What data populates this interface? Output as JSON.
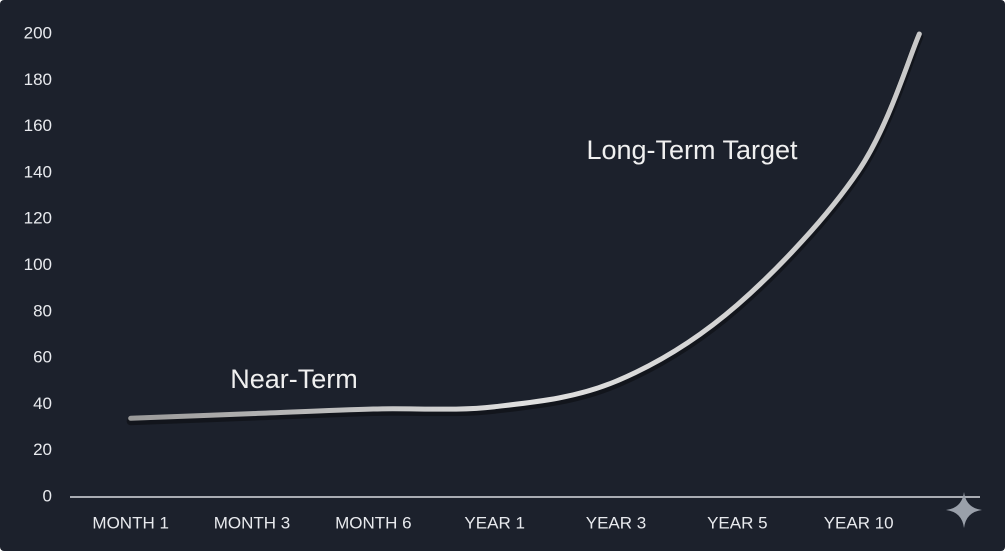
{
  "chart_data": {
    "type": "line",
    "annotations": [
      "Near-Term",
      "Long-Term Target"
    ],
    "x": [
      0,
      1,
      2,
      3,
      4,
      5,
      6,
      6.5
    ],
    "values": [
      34,
      36,
      38,
      39,
      50,
      83,
      141,
      200
    ],
    "color": "#d8d8d8",
    "xlim": [
      -0.5,
      7
    ],
    "xticks": [
      {
        "value": 0,
        "label": "MONTH 1"
      },
      {
        "value": 1,
        "label": "MONTH 3"
      },
      {
        "value": 2,
        "label": "MONTH 6"
      },
      {
        "value": 3,
        "label": "YEAR 1"
      },
      {
        "value": 4,
        "label": "YEAR 3"
      },
      {
        "value": 5,
        "label": "YEAR 5"
      },
      {
        "value": 6,
        "label": "YEAR 10"
      }
    ],
    "ylim": [
      0,
      200
    ],
    "yticks": [
      0,
      20,
      40,
      60,
      80,
      100,
      120,
      140,
      160,
      180,
      200
    ],
    "grid": true
  }
}
